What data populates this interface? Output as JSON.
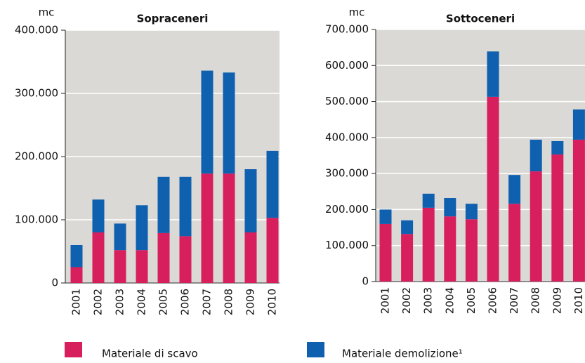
{
  "chart_data": [
    {
      "type": "bar",
      "stacked": true,
      "title": "Sopraceneri",
      "y_label": "mc",
      "categories": [
        "2001",
        "2002",
        "2003",
        "2004",
        "2005",
        "2006",
        "2007",
        "2008",
        "2009",
        "2010"
      ],
      "series": [
        {
          "name": "Materiale di scavo",
          "color": "#d81f5e",
          "values": [
            25000,
            80000,
            52000,
            52000,
            79000,
            74000,
            173000,
            173000,
            80000,
            103000
          ]
        },
        {
          "name": "Materiale demolizione¹",
          "color": "#1060b0",
          "values": [
            35000,
            52000,
            42000,
            71000,
            89000,
            94000,
            163000,
            160000,
            100000,
            106000
          ]
        }
      ],
      "ylim": [
        0,
        400000
      ],
      "yticks": [
        0,
        {
          "value": 100000,
          "label": "100.000"
        },
        {
          "value": 200000,
          "label": "200.000"
        },
        {
          "value": 300000,
          "label": "300.000"
        },
        {
          "value": 400000,
          "label": "400.000"
        }
      ],
      "grid": true
    },
    {
      "type": "bar",
      "stacked": true,
      "title": "Sottoceneri",
      "y_label": "mc",
      "categories": [
        "2001",
        "2002",
        "2003",
        "2004",
        "2005",
        "2006",
        "2007",
        "2008",
        "2009",
        "2010"
      ],
      "series": [
        {
          "name": "Materiale di scavo",
          "color": "#d81f5e",
          "values": [
            160000,
            132000,
            205000,
            181000,
            173000,
            513000,
            216000,
            306000,
            353000,
            394000
          ]
        },
        {
          "name": "Materiale demolizione¹",
          "color": "#1060b0",
          "values": [
            40000,
            38000,
            39000,
            51000,
            43000,
            126000,
            80000,
            88000,
            37000,
            84000
          ]
        }
      ],
      "ylim": [
        0,
        700000
      ],
      "yticks": [
        0,
        {
          "value": 100000,
          "label": "100.000"
        },
        {
          "value": 200000,
          "label": "200.000"
        },
        {
          "value": 300000,
          "label": "300.000"
        },
        {
          "value": 400000,
          "label": "400.000"
        },
        {
          "value": 500000,
          "label": "500.000"
        },
        {
          "value": 600000,
          "label": "600.000"
        },
        {
          "value": 700000,
          "label": "700.000"
        }
      ],
      "grid": true
    }
  ]
}
